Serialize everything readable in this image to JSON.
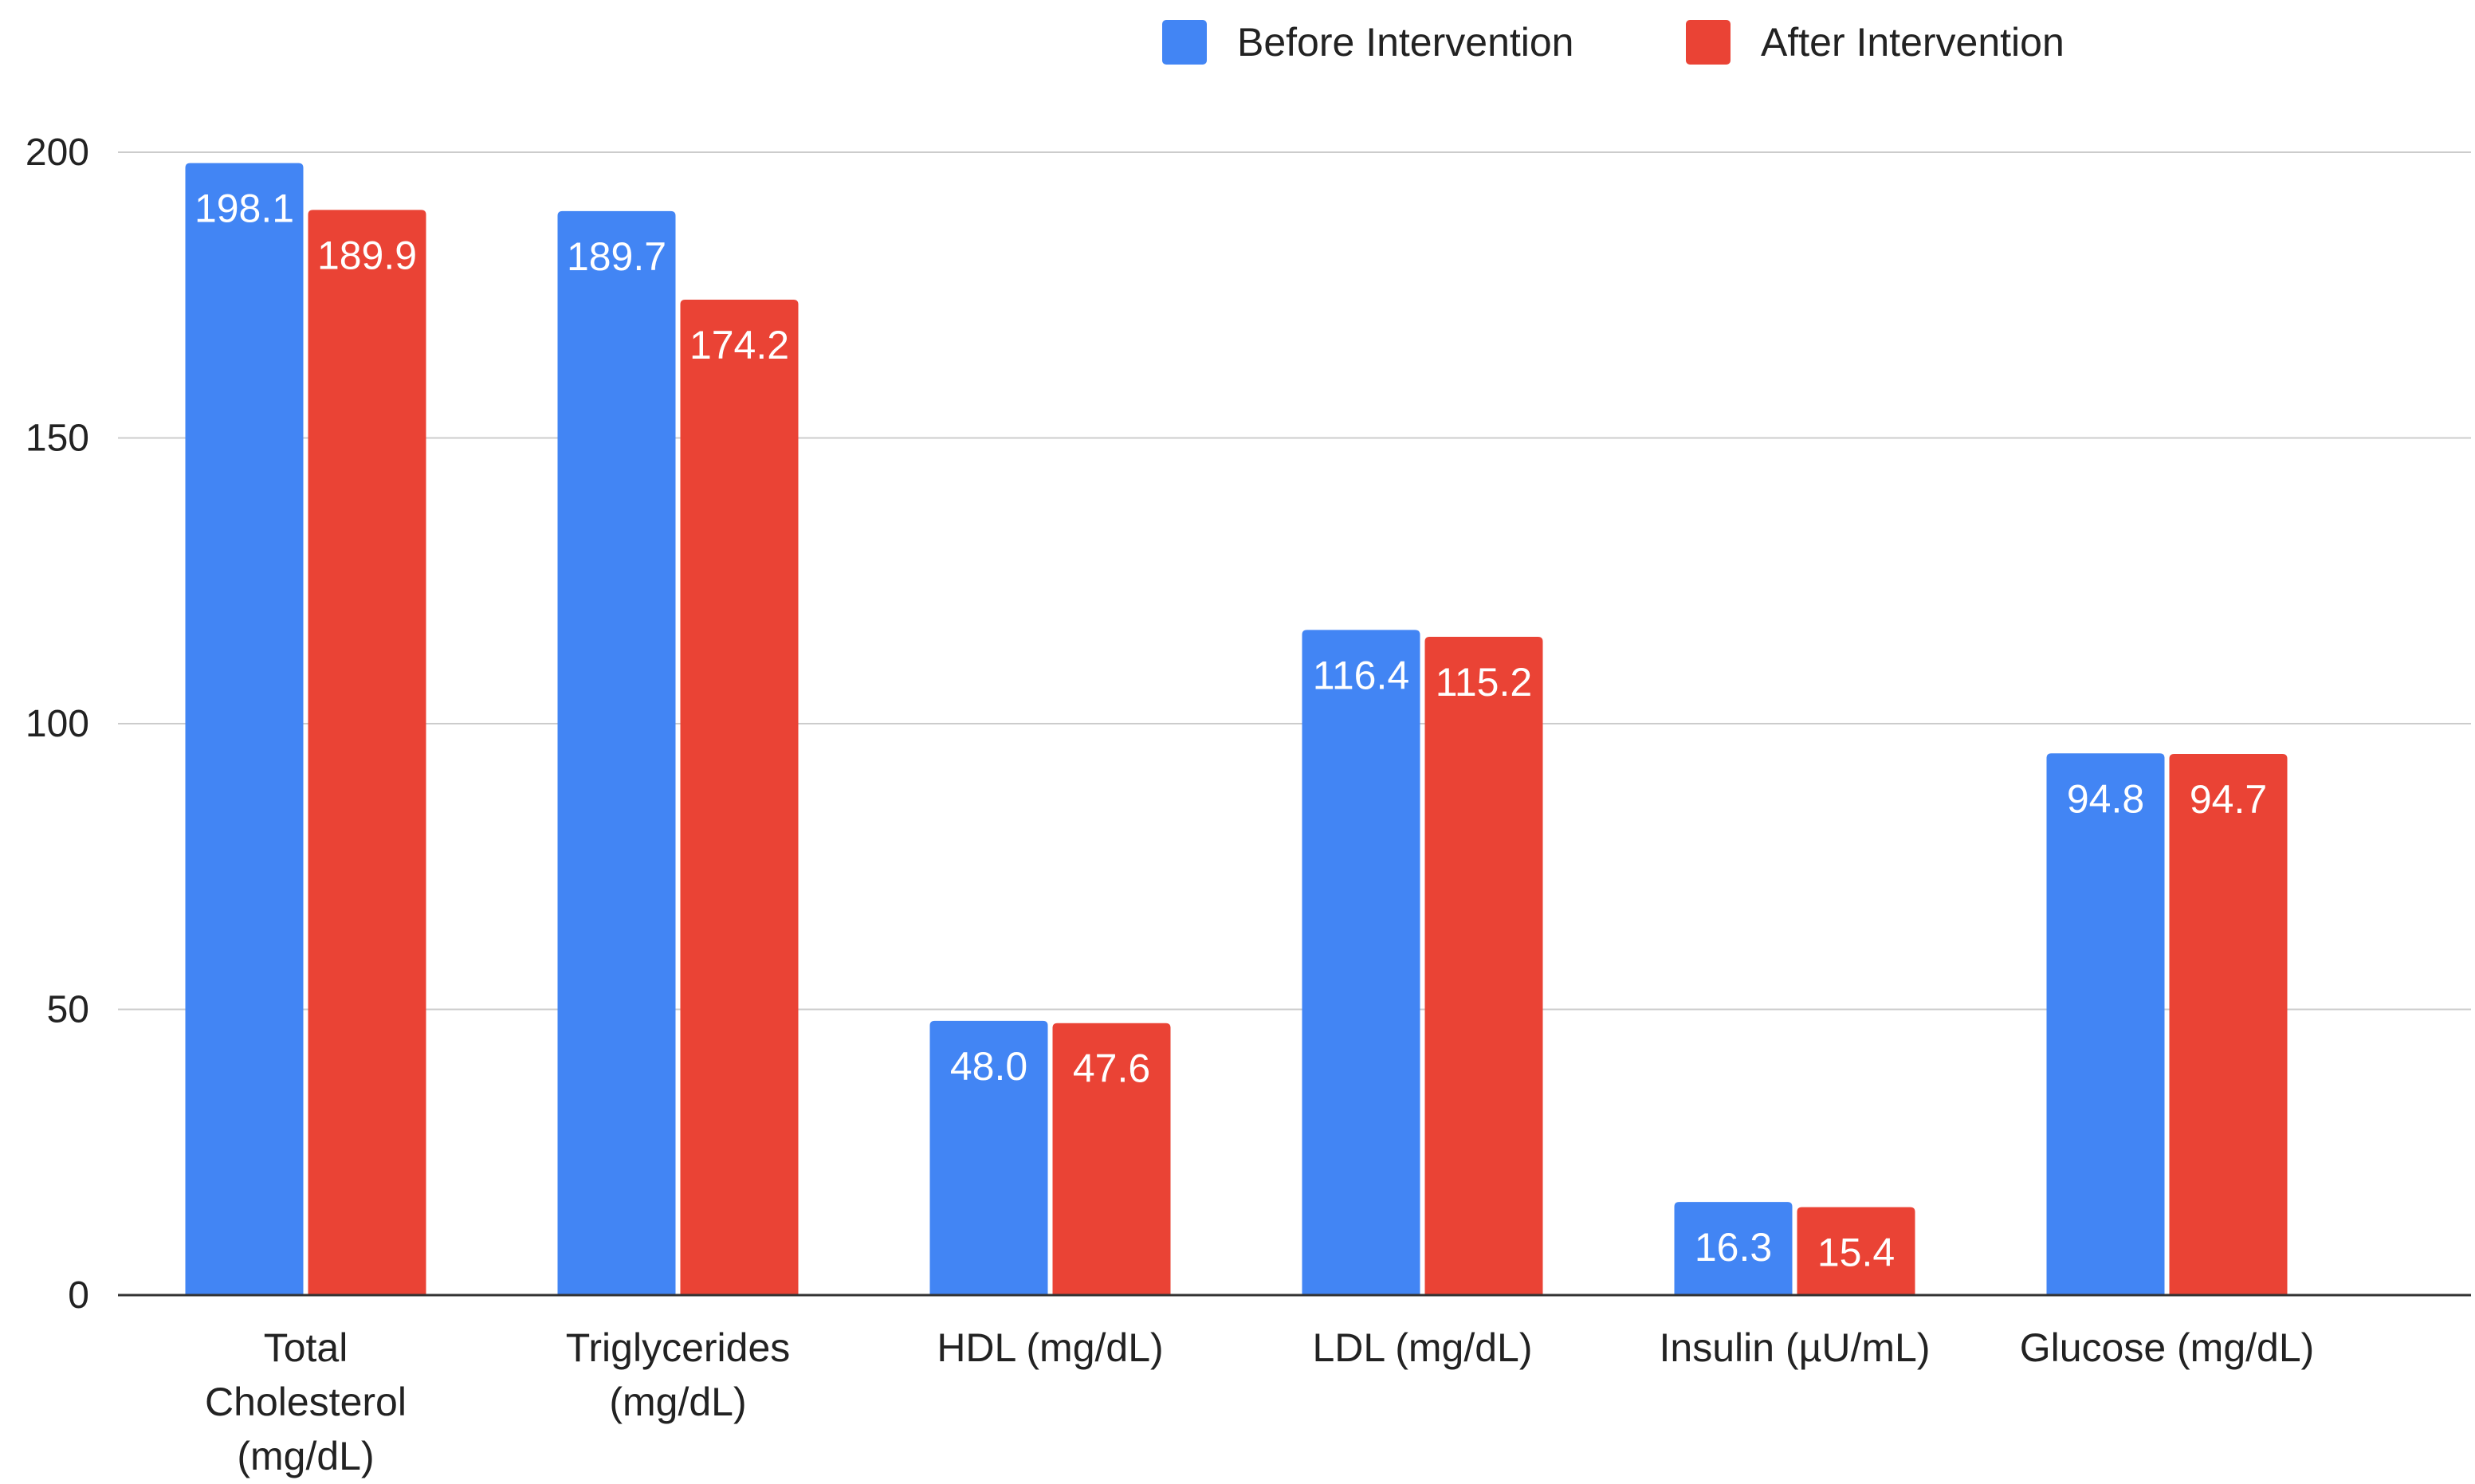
{
  "chart_data": {
    "type": "bar",
    "title": "",
    "xlabel": "",
    "ylabel": "",
    "ylim": [
      0,
      200
    ],
    "yticks": [
      "0",
      "50",
      "100",
      "150",
      "200"
    ],
    "grid": true,
    "legend": "top-right",
    "categories": [
      [
        "Total",
        "Cholesterol",
        "(mg/dL)"
      ],
      [
        "Triglycerides",
        "(mg/dL)"
      ],
      [
        "HDL (mg/dL)"
      ],
      [
        "LDL (mg/dL)"
      ],
      [
        "Insulin (µU/mL)"
      ],
      [
        "Glucose (mg/dL)"
      ]
    ],
    "series": [
      {
        "name": "Before Intervention",
        "color": "#4285F4",
        "values": [
          198.1,
          189.7,
          48.0,
          116.4,
          16.3,
          94.8
        ],
        "labels": [
          "198.1",
          "189.7",
          "48.0",
          "116.4",
          "16.3",
          "94.8"
        ]
      },
      {
        "name": "After Intervention",
        "color": "#EA4335",
        "values": [
          189.9,
          174.2,
          47.6,
          115.2,
          15.4,
          94.7
        ],
        "labels": [
          "189.9",
          "174.2",
          "47.6",
          "115.2",
          "15.4",
          "94.7"
        ]
      }
    ]
  }
}
